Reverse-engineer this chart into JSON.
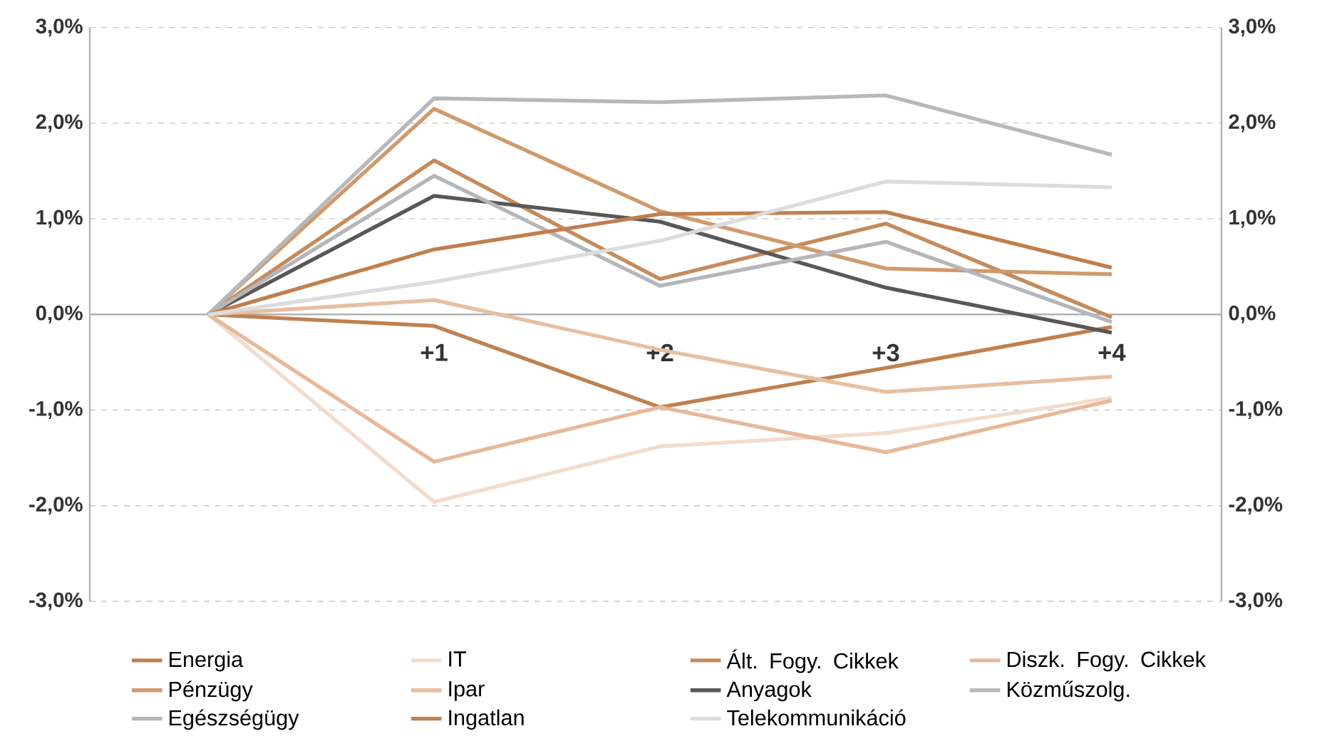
{
  "chart_data": {
    "type": "line",
    "categories": [
      null,
      "+1",
      "+2",
      "+3",
      "+4"
    ],
    "series": [
      {
        "name": "Energia",
        "color": "#c08050",
        "values": [
          0,
          -0.12,
          -0.97,
          -0.56,
          -0.13
        ]
      },
      {
        "name": "IT",
        "color": "#f3dccd",
        "values": [
          0,
          -1.96,
          -1.38,
          -1.24,
          -0.87
        ]
      },
      {
        "name": "Ált. Fogy. Cikkek",
        "color": "#c58b5c",
        "values": [
          0,
          1.61,
          0.37,
          0.95,
          -0.03
        ]
      },
      {
        "name": "Diszk. Fogy. Cikkek",
        "color": "#e6b99a",
        "values": [
          0,
          -1.54,
          -0.97,
          -1.44,
          -0.9
        ]
      },
      {
        "name": "Pénzügy",
        "color": "#d09a6c",
        "values": [
          0,
          2.15,
          1.08,
          0.48,
          0.42
        ]
      },
      {
        "name": "Ipar",
        "color": "#e7bfa1",
        "values": [
          0,
          0.15,
          -0.37,
          -0.81,
          -0.65
        ]
      },
      {
        "name": "Anyagok",
        "color": "#58585a",
        "values": [
          0,
          1.24,
          0.97,
          0.28,
          -0.19
        ]
      },
      {
        "name": "Közműszolg.",
        "color": "#b7b8bb",
        "values": [
          0,
          2.26,
          2.22,
          2.29,
          1.67
        ]
      },
      {
        "name": "Egészségügy",
        "color": "#b5b6b9",
        "values": [
          0,
          1.45,
          0.3,
          0.76,
          -0.08
        ]
      },
      {
        "name": "Ingatlan",
        "color": "#c07f4f",
        "values": [
          0,
          0.68,
          1.05,
          1.07,
          0.49
        ]
      },
      {
        "name": "Telekommunikáció",
        "color": "#dcdcde",
        "values": [
          0,
          0.34,
          0.77,
          1.39,
          1.33
        ]
      }
    ],
    "ylim": [
      -3,
      3
    ],
    "yticks": [
      {
        "value": -3,
        "label": "-3,0%"
      },
      {
        "value": -2,
        "label": "-2,0%"
      },
      {
        "value": -1,
        "label": "-1,0%"
      },
      {
        "value": 0,
        "label": "0,0%"
      },
      {
        "value": 1,
        "label": "1,0%"
      },
      {
        "value": 2,
        "label": "2,0%"
      },
      {
        "value": 3,
        "label": "3,0%"
      }
    ],
    "y2lim": [
      -3,
      3
    ],
    "y2ticks": [
      {
        "value": -3,
        "label": "-3,0%"
      },
      {
        "value": -2,
        "label": "-2,0%"
      },
      {
        "value": -1,
        "label": "-1,0%"
      },
      {
        "value": 0,
        "label": "0,0%"
      },
      {
        "value": 1,
        "label": "1,0%"
      },
      {
        "value": 2,
        "label": "2,0%"
      },
      {
        "value": 3,
        "label": "3,0%"
      }
    ],
    "grid": "y",
    "legend": "bottom"
  }
}
